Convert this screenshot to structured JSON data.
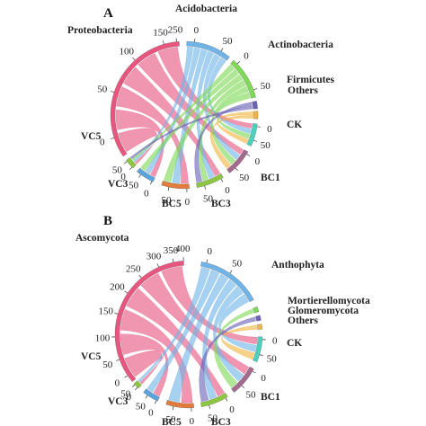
{
  "panels": [
    {
      "letter": "A",
      "sectors": [
        {
          "id": "proteobacteria",
          "name": "Proteobacteria",
          "color": "#e8557f",
          "ticks": [
            "0",
            "50",
            "100",
            "150"
          ]
        },
        {
          "id": "acidobacteria",
          "name": "Acidobacteria",
          "color": "#6fb4e8",
          "ticks": [
            "250",
            "0",
            "50"
          ]
        },
        {
          "id": "actinobacteria",
          "name": "Actinobacteria",
          "color": "#7ed957",
          "ticks": [
            "0",
            "50"
          ]
        },
        {
          "id": "firmicutes",
          "name": "Firmicutes",
          "color": "#6a62b8",
          "ticks": []
        },
        {
          "id": "others",
          "name": "Others",
          "color": "#f0b542",
          "ticks": []
        },
        {
          "id": "ck",
          "name": "CK",
          "color": "#4bd1bd",
          "ticks": [
            "0",
            "50"
          ]
        },
        {
          "id": "bc1",
          "name": "BC1",
          "color": "#a36a8e",
          "ticks": [
            "0",
            "50"
          ]
        },
        {
          "id": "bc3",
          "name": "BC3",
          "color": "#8dc641",
          "ticks": [
            "0",
            "50"
          ]
        },
        {
          "id": "bc5",
          "name": "BC5",
          "color": "#e37b3d",
          "ticks": [
            "0",
            "50"
          ]
        },
        {
          "id": "vc3",
          "name": "VC3",
          "color": "#5aa3dc",
          "ticks": [
            "0",
            "50"
          ]
        },
        {
          "id": "vc5",
          "name": "VC5",
          "color": "#8dc641",
          "ticks": [
            "0",
            "50"
          ]
        }
      ]
    },
    {
      "letter": "B",
      "sectors": [
        {
          "id": "ascomycota",
          "name": "Ascomycota",
          "color": "#e8557f",
          "ticks": [
            "0",
            "50",
            "100",
            "150",
            "200",
            "250",
            "300",
            "350",
            "400"
          ]
        },
        {
          "id": "anthophyta",
          "name": "Anthophyta",
          "color": "#6fb4e8",
          "ticks": [
            "0",
            "50"
          ]
        },
        {
          "id": "mortierellomycota",
          "name": "Mortierellomycota",
          "color": "#7ed957",
          "ticks": []
        },
        {
          "id": "glomeromycota",
          "name": "Glomeromycota",
          "color": "#6a62b8",
          "ticks": []
        },
        {
          "id": "others",
          "name": "Others",
          "color": "#f0b542",
          "ticks": []
        },
        {
          "id": "ck",
          "name": "CK",
          "color": "#4bd1bd",
          "ticks": [
            "0",
            "50"
          ]
        },
        {
          "id": "bc1",
          "name": "BC1",
          "color": "#a36a8e",
          "ticks": [
            "0",
            "50"
          ]
        },
        {
          "id": "bc3",
          "name": "BC3",
          "color": "#8dc641",
          "ticks": [
            "0",
            "50"
          ]
        },
        {
          "id": "bc5",
          "name": "BC5",
          "color": "#e37b3d",
          "ticks": [
            "0",
            "50"
          ]
        },
        {
          "id": "vc3",
          "name": "VC3",
          "color": "#5aa3dc",
          "ticks": [
            "0",
            "50"
          ]
        },
        {
          "id": "vc5",
          "name": "VC5",
          "color": "#8dc641",
          "ticks": [
            "0",
            "50"
          ]
        }
      ]
    }
  ]
}
